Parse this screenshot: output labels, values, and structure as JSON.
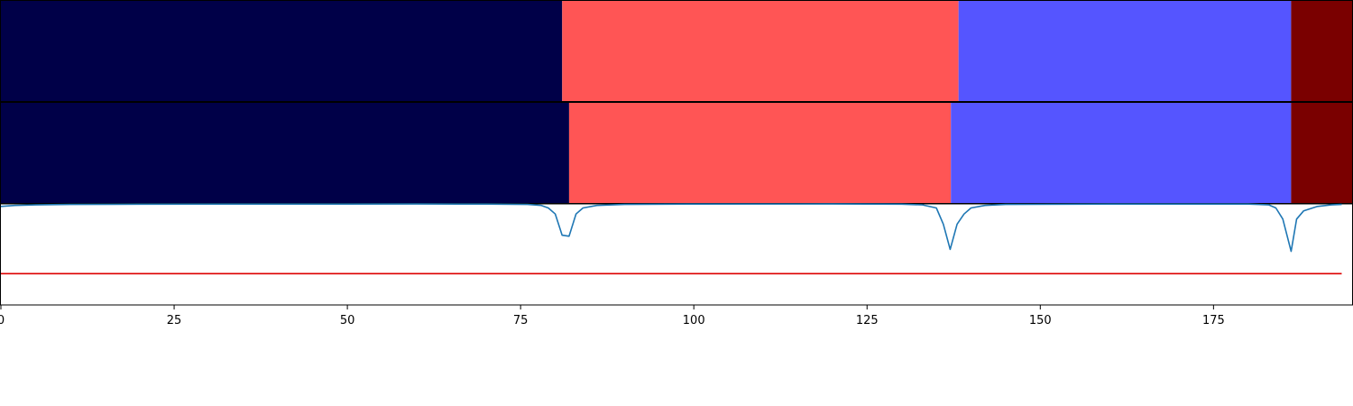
{
  "chart_data": {
    "type": "segmentation",
    "xlim": [
      0,
      195
    ],
    "x_ticks": [
      0,
      25,
      50,
      75,
      100,
      125,
      150,
      175
    ],
    "x_tick_labels": [
      "0",
      "25",
      "50",
      "75",
      "100",
      "125",
      "150",
      "175"
    ],
    "colors": {
      "segment_1": "#000048",
      "segment_2": "#ff5555",
      "segment_3": "#5555ff",
      "segment_4": "#7a0000",
      "score_line": "#1f77b4",
      "threshold_line": "#dd0000"
    },
    "rows": [
      {
        "segments": [
          {
            "start": 0,
            "end": 81,
            "color_key": "segment_1"
          },
          {
            "start": 81,
            "end": 138.2,
            "color_key": "segment_2"
          },
          {
            "start": 138.2,
            "end": 186.2,
            "color_key": "segment_3"
          },
          {
            "start": 186.2,
            "end": 195,
            "color_key": "segment_4"
          }
        ]
      },
      {
        "segments": [
          {
            "start": 0,
            "end": 82,
            "color_key": "segment_1"
          },
          {
            "start": 82,
            "end": 137.1,
            "color_key": "segment_2"
          },
          {
            "start": 137.1,
            "end": 186.2,
            "color_key": "segment_3"
          },
          {
            "start": 186.2,
            "end": 195,
            "color_key": "segment_4"
          }
        ]
      }
    ],
    "score_line": {
      "ylim": [
        0,
        1
      ],
      "threshold": 0.31,
      "points": [
        [
          0,
          0.975
        ],
        [
          2,
          0.985
        ],
        [
          5,
          0.99
        ],
        [
          10,
          0.995
        ],
        [
          20,
          0.997
        ],
        [
          40,
          0.998
        ],
        [
          60,
          0.999
        ],
        [
          70,
          0.998
        ],
        [
          76,
          0.995
        ],
        [
          78,
          0.985
        ],
        [
          79,
          0.96
        ],
        [
          80,
          0.9
        ],
        [
          81,
          0.69
        ],
        [
          82,
          0.68
        ],
        [
          83,
          0.9
        ],
        [
          84,
          0.96
        ],
        [
          86,
          0.985
        ],
        [
          90,
          0.995
        ],
        [
          100,
          0.998
        ],
        [
          120,
          0.999
        ],
        [
          130,
          0.997
        ],
        [
          133,
          0.99
        ],
        [
          135,
          0.96
        ],
        [
          136,
          0.8
        ],
        [
          137,
          0.55
        ],
        [
          138,
          0.8
        ],
        [
          139,
          0.9
        ],
        [
          140,
          0.96
        ],
        [
          142,
          0.985
        ],
        [
          145,
          0.995
        ],
        [
          160,
          0.998
        ],
        [
          180,
          0.998
        ],
        [
          183,
          0.99
        ],
        [
          184,
          0.96
        ],
        [
          185,
          0.85
        ],
        [
          186.2,
          0.53
        ],
        [
          187,
          0.85
        ],
        [
          188,
          0.93
        ],
        [
          190,
          0.975
        ],
        [
          192,
          0.99
        ],
        [
          193.5,
          0.995
        ]
      ]
    }
  }
}
